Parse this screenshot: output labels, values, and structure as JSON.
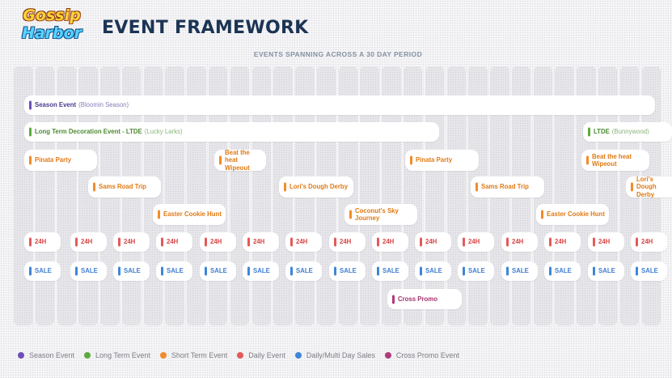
{
  "header": {
    "logo_line1": "Gossip",
    "logo_line2": "Harbor",
    "title": "EVENT FRAMEWORK",
    "subtitle": "EVENTS SPANNING ACROSS A 30 DAY PERIOD"
  },
  "colors": {
    "season": "#6d4fb8",
    "long_term": "#5faa3e",
    "short_term": "#f28c28",
    "daily": "#e35a5a",
    "sale": "#3f86d6",
    "cross_promo": "#b03a7c"
  },
  "events": {
    "season": {
      "label": "Season Event",
      "detail": "(Bloomin Season)"
    },
    "ltde_1": {
      "label": "Long Term Decoration Event - LTDE",
      "detail": "(Lucky Larks)"
    },
    "ltde_2": {
      "label": "LTDE",
      "detail": "(Bunnywood)"
    },
    "pinata_1": "Pinata Party",
    "beat_heat_1": "Beat the heat Wipeout",
    "pinata_2": "Pinata Party",
    "beat_heat_2": "Beat the heat Wipeout",
    "sams_1": "Sams Road Trip",
    "loris_1": "Lori's Dough Derby",
    "sams_2": "Sams Road Trip",
    "loris_2": "Lori's Dough Derby",
    "easter_1": "Easter Cookie Hunt",
    "coconut": "Coconut's Sky Journey",
    "easter_2": "Easter Cookie Hunt",
    "daily_label": "24H",
    "sale_label": "SALE",
    "cross_promo": "Cross Promo"
  },
  "legend": [
    {
      "label": "Season Event",
      "color": "#6d4fb8"
    },
    {
      "label": "Long Term Event",
      "color": "#5faa3e"
    },
    {
      "label": "Short Term Event",
      "color": "#f28c28"
    },
    {
      "label": "Daily Event",
      "color": "#e35a5a"
    },
    {
      "label": "Daily/Multi Day Sales",
      "color": "#3f86d6"
    },
    {
      "label": "Cross Promo Event",
      "color": "#b03a7c"
    }
  ]
}
